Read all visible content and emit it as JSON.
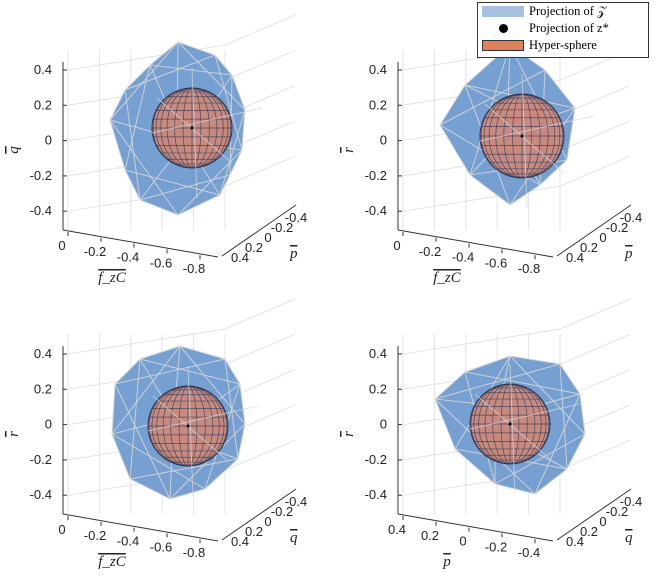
{
  "chart_data": [
    {
      "type": "scatter",
      "title": "",
      "xlabel": "f_zC",
      "ylabel": "q",
      "zlabel": "p",
      "xticks": [
        "0",
        "-0.2",
        "-0.4",
        "-0.6",
        "-0.8"
      ],
      "yticks": [
        "0.4",
        "0.2",
        "0",
        "-0.2",
        "-0.4"
      ],
      "zticks": [
        "0.4",
        "0.2",
        "0",
        "-0.2",
        "-0.4"
      ]
    },
    {
      "type": "scatter",
      "title": "",
      "xlabel": "f_zC",
      "ylabel": "r",
      "zlabel": "p",
      "xticks": [
        "0",
        "-0.2",
        "-0.4",
        "-0.6",
        "-0.8"
      ],
      "yticks": [
        "0.4",
        "0.2",
        "0",
        "-0.2",
        "-0.4"
      ],
      "zticks": [
        "0.4",
        "0.2",
        "0",
        "-0.2",
        "-0.4"
      ]
    },
    {
      "type": "scatter",
      "title": "",
      "xlabel": "f_zC",
      "ylabel": "r",
      "zlabel": "q",
      "xticks": [
        "0",
        "-0.2",
        "-0.4",
        "-0.6",
        "-0.8"
      ],
      "yticks": [
        "0.4",
        "0.2",
        "0",
        "-0.2",
        "-0.4"
      ],
      "zticks": [
        "0.4",
        "0.2",
        "0",
        "-0.2",
        "-0.4"
      ]
    },
    {
      "type": "scatter",
      "title": "",
      "xlabel": "p",
      "ylabel": "r",
      "zlabel": "q",
      "xticks": [
        "0.4",
        "0.2",
        "0",
        "-0.2",
        "-0.4"
      ],
      "yticks": [
        "0.4",
        "0.2",
        "0",
        "-0.2",
        "-0.4"
      ],
      "zticks": [
        "0.4",
        "0.2",
        "0",
        "-0.2",
        "-0.4"
      ]
    }
  ],
  "legend": {
    "items": [
      {
        "label": "Projection of 𝒵",
        "color": "#a7c1e0"
      },
      {
        "label": "Projection of z*",
        "color": "#000000"
      },
      {
        "label": "Hyper-sphere",
        "color": "#e0805c"
      }
    ]
  },
  "colors": {
    "polytope": "#6f9bcf",
    "sphere": "#c88a7e",
    "mesh": "#2b3a58",
    "edges": "#d8d8d8"
  }
}
